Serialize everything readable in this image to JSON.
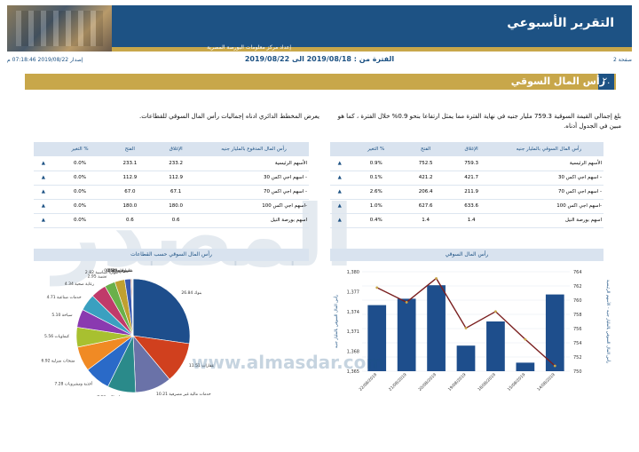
{
  "header": {
    "report_title": "التقرير الأسبوعي",
    "subtitle": "إعداد مركز معلومات البورصة المصرية"
  },
  "meta": {
    "page_label": "صفحة 2",
    "period": "الفترة من : 2019/08/18 الى 2019/08/22",
    "issue_date": "إصدار 2019/08/22 07:18:46 م"
  },
  "section": {
    "number": "٢.",
    "title": "رأس المال السوقي"
  },
  "paragraph_right": "بلغ إجمالي القيمة السوقية 759.3 مليار جنيه في نهاية الفترة مما يمثل ارتفاعا بنحو 0.9% خلال الفترة ، كما هو مبين في الجدول أدناه.",
  "paragraph_left": "يعرض المخطط الدائري ادناه إجماليات رأس المال السوقي للقطاعات.",
  "table_right": {
    "headers": [
      "رأس المال السوقي بالمليار جنيه",
      "الإغلاق",
      "الفتح",
      "% التغير",
      ""
    ],
    "rows": [
      {
        "label": "الأسهم الرئيسية",
        "close": "759.3",
        "open": "752.5",
        "change": "0.9%",
        "arrow": "▲"
      },
      {
        "label": "- اسهم اجي اكس 30",
        "close": "421.7",
        "open": "421.2",
        "change": "0.1%",
        "arrow": "▲"
      },
      {
        "label": "- اسهم اجي اكس 70",
        "close": "211.9",
        "open": "206.4",
        "change": "2.6%",
        "arrow": "▲"
      },
      {
        "label": "-اسهم اجي اكس 100",
        "close": "633.6",
        "open": "627.6",
        "change": "1.0%",
        "arrow": "▲"
      },
      {
        "label": "اسهم بورصة النيل",
        "close": "1.4",
        "open": "1.4",
        "change": "0.4%",
        "arrow": "▲"
      }
    ]
  },
  "table_left": {
    "headers": [
      "رأس المال المدفوع بالمليار جنيه",
      "الإغلاق",
      "الفتح",
      "% التغير",
      ""
    ],
    "rows": [
      {
        "label": "الأسهم الرئيسية",
        "close": "233.2",
        "open": "233.1",
        "change": "0.0%",
        "arrow": "▲"
      },
      {
        "label": "- اسهم اجي اكس 30",
        "close": "112.9",
        "open": "112.9",
        "change": "0.0%",
        "arrow": "▲"
      },
      {
        "label": "- اسهم اجي اكس 70",
        "close": "67.1",
        "open": "67.0",
        "change": "0.0%",
        "arrow": "▲"
      },
      {
        "label": "-اسهم اجي اكس 100",
        "close": "180.0",
        "open": "180.0",
        "change": "0.0%",
        "arrow": "▲"
      },
      {
        "label": "اسهم بورصة النيل",
        "close": "0.6",
        "open": "0.6",
        "change": "0.0%",
        "arrow": "▲"
      }
    ]
  },
  "pie_title": "رأس المال السوقي حسب القطاعات",
  "bar_title": "رأس المال السوقي",
  "watermark": "المصدر",
  "watermark_url": "www.almasdar.com",
  "colors": {
    "navy": "#1d5284",
    "gold": "#c8a74a",
    "line": "#7a1f1f"
  },
  "chart_data": [
    {
      "type": "pie",
      "title": "رأس المال السوقي حسب القطاعات",
      "slices": [
        {
          "label": "بنوك",
          "value": 26.84,
          "color": "#1e4e8c"
        },
        {
          "label": "عقارات",
          "value": 11.51,
          "color": "#d0401e"
        },
        {
          "label": "خدمات مالية غير مصرفية",
          "value": 10.21,
          "color": "#6a72a8"
        },
        {
          "label": "اتصالات",
          "value": 7.93,
          "color": "#2a8a8a"
        },
        {
          "label": "أغذية ومشروبات",
          "value": 7.28,
          "color": "#2a6ac8"
        },
        {
          "label": "منتجات منزلية",
          "value": 6.92,
          "color": "#f08a24"
        },
        {
          "label": "كيماويات",
          "value": 5.56,
          "color": "#a8c030"
        },
        {
          "label": "سياحة",
          "value": 5.1,
          "color": "#8a3ab0"
        },
        {
          "label": "خدمات صناعية",
          "value": 4.71,
          "color": "#3aa0c0"
        },
        {
          "label": "رعاية صحية",
          "value": 4.34,
          "color": "#c03a6a"
        },
        {
          "label": "تشييد",
          "value": 2.95,
          "color": "#6ab04a"
        },
        {
          "label": "موارد أساسية",
          "value": 2.82,
          "color": "#c0a030"
        },
        {
          "label": "تجارة",
          "value": 1.67,
          "color": "#3a5ab0"
        },
        {
          "label": "سيارات",
          "value": 0.29,
          "color": "#d06a3a"
        },
        {
          "label": "غاز وبترول",
          "value": 0.25,
          "color": "#8aa0c0"
        },
        {
          "label": "منسوجات",
          "value": 0.14,
          "color": "#3a8a5a"
        }
      ]
    },
    {
      "type": "bar",
      "title": "رأس المال السوقي",
      "categories": [
        "22/08/2019",
        "21/08/2019",
        "20/08/2019",
        "19/08/2019",
        "18/08/2019",
        "15/08/2019",
        "14/08/2019"
      ],
      "series": [
        {
          "name": "رأس المال السوقي الأسهم الرئيسية",
          "values": [
            759.3,
            760.2,
            762.1,
            753.6,
            757.0,
            751.2,
            760.8
          ],
          "axis": "right"
        },
        {
          "name": "الاجمالي",
          "values": [
            1377.6,
            1375.4,
            1379.0,
            1371.5,
            1374.0,
            1369.8,
            1365.8
          ],
          "axis": "left"
        }
      ],
      "y_right_ticks": [
        "750",
        "752",
        "754",
        "756",
        "758",
        "760",
        "762",
        "764"
      ],
      "y_left_ticks": [
        "1,365",
        "1,368",
        "1,371",
        "1,374",
        "1,377",
        "1,380"
      ],
      "y_right_range": [
        750,
        764
      ],
      "y_left_range": [
        1365,
        1380
      ],
      "ylabel_right": "رأس المال السوقي بالمليار جنيه - الأسهم الرئيسية",
      "ylabel_left": "رأس المال السوقي بالمليار جنيه"
    }
  ]
}
